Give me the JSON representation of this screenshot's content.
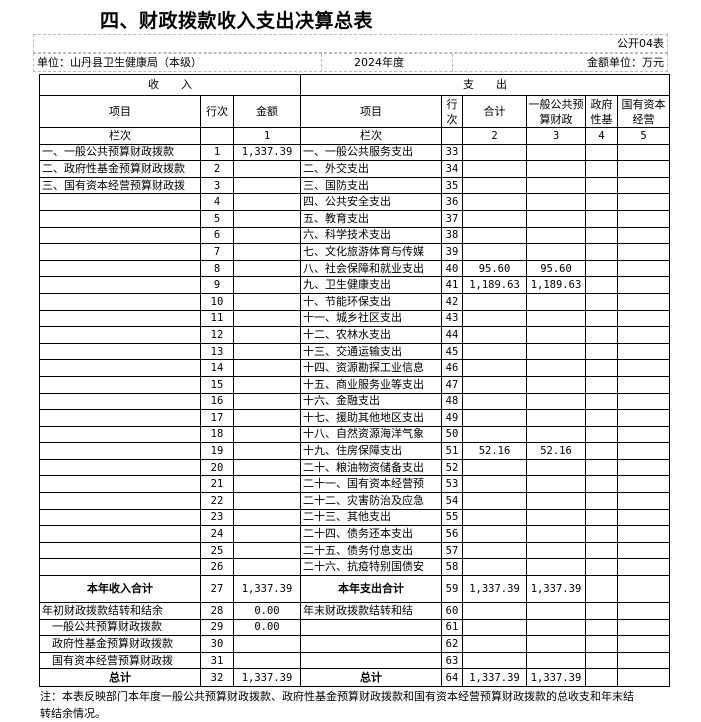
{
  "title": "四、财政拨款收入支出决算总表",
  "form_code": "公开04表",
  "unit": "单位：山丹县卫生健康局（本级）",
  "year": "2024年度",
  "currency": "金额单位：万元",
  "header": {
    "income": "收　　入",
    "expense": "支　　出",
    "item": "项目",
    "row_no": "行次",
    "amount": "金额",
    "exp_item": "项目",
    "exp_row_no": "行次",
    "total": "合计",
    "general": "一般公共预算财政",
    "gov_fund": "政府性基",
    "state_capital": "国有资本经营",
    "col_label": "栏次",
    "col1": "1",
    "col_label2": "栏次",
    "col2": "2",
    "col3": "3",
    "col4": "4",
    "col5": "5"
  },
  "rows": [
    {
      "in_item": "一、一般公共预算财政拨款",
      "in_no": "1",
      "in_amt": "1,337.39",
      "ex_item": "一、一般公共服务支出",
      "ex_no": "33",
      "total": "",
      "general": ""
    },
    {
      "in_item": "二、政府性基金预算财政拨款",
      "in_no": "2",
      "in_amt": "",
      "ex_item": "二、外交支出",
      "ex_no": "34",
      "total": "",
      "general": ""
    },
    {
      "in_item": "三、国有资本经营预算财政拨",
      "in_no": "3",
      "in_amt": "",
      "ex_item": "三、国防支出",
      "ex_no": "35",
      "total": "",
      "general": ""
    },
    {
      "in_item": "",
      "in_no": "4",
      "in_amt": "",
      "ex_item": "四、公共安全支出",
      "ex_no": "36",
      "total": "",
      "general": ""
    },
    {
      "in_item": "",
      "in_no": "5",
      "in_amt": "",
      "ex_item": "五、教育支出",
      "ex_no": "37",
      "total": "",
      "general": ""
    },
    {
      "in_item": "",
      "in_no": "6",
      "in_amt": "",
      "ex_item": "六、科学技术支出",
      "ex_no": "38",
      "total": "",
      "general": ""
    },
    {
      "in_item": "",
      "in_no": "7",
      "in_amt": "",
      "ex_item": "七、文化旅游体育与传媒",
      "ex_no": "39",
      "total": "",
      "general": ""
    },
    {
      "in_item": "",
      "in_no": "8",
      "in_amt": "",
      "ex_item": "八、社会保障和就业支出",
      "ex_no": "40",
      "total": "95.60",
      "general": "95.60"
    },
    {
      "in_item": "",
      "in_no": "9",
      "in_amt": "",
      "ex_item": "九、卫生健康支出",
      "ex_no": "41",
      "total": "1,189.63",
      "general": "1,189.63"
    },
    {
      "in_item": "",
      "in_no": "10",
      "in_amt": "",
      "ex_item": "十、节能环保支出",
      "ex_no": "42",
      "total": "",
      "general": ""
    },
    {
      "in_item": "",
      "in_no": "11",
      "in_amt": "",
      "ex_item": "十一、城乡社区支出",
      "ex_no": "43",
      "total": "",
      "general": ""
    },
    {
      "in_item": "",
      "in_no": "12",
      "in_amt": "",
      "ex_item": "十二、农林水支出",
      "ex_no": "44",
      "total": "",
      "general": ""
    },
    {
      "in_item": "",
      "in_no": "13",
      "in_amt": "",
      "ex_item": "十三、交通运输支出",
      "ex_no": "45",
      "total": "",
      "general": ""
    },
    {
      "in_item": "",
      "in_no": "14",
      "in_amt": "",
      "ex_item": "十四、资源勘探工业信息",
      "ex_no": "46",
      "total": "",
      "general": ""
    },
    {
      "in_item": "",
      "in_no": "15",
      "in_amt": "",
      "ex_item": "十五、商业服务业等支出",
      "ex_no": "47",
      "total": "",
      "general": ""
    },
    {
      "in_item": "",
      "in_no": "16",
      "in_amt": "",
      "ex_item": "十六、金融支出",
      "ex_no": "48",
      "total": "",
      "general": ""
    },
    {
      "in_item": "",
      "in_no": "17",
      "in_amt": "",
      "ex_item": "十七、援助其他地区支出",
      "ex_no": "49",
      "total": "",
      "general": ""
    },
    {
      "in_item": "",
      "in_no": "18",
      "in_amt": "",
      "ex_item": "十八、自然资源海洋气象",
      "ex_no": "50",
      "total": "",
      "general": ""
    },
    {
      "in_item": "",
      "in_no": "19",
      "in_amt": "",
      "ex_item": "十九、住房保障支出",
      "ex_no": "51",
      "total": "52.16",
      "general": "52.16"
    },
    {
      "in_item": "",
      "in_no": "20",
      "in_amt": "",
      "ex_item": "二十、粮油物资储备支出",
      "ex_no": "52",
      "total": "",
      "general": ""
    },
    {
      "in_item": "",
      "in_no": "21",
      "in_amt": "",
      "ex_item": "二十一、国有资本经营预",
      "ex_no": "53",
      "total": "",
      "general": ""
    },
    {
      "in_item": "",
      "in_no": "22",
      "in_amt": "",
      "ex_item": "二十二、灾害防治及应急",
      "ex_no": "54",
      "total": "",
      "general": ""
    },
    {
      "in_item": "",
      "in_no": "23",
      "in_amt": "",
      "ex_item": "二十三、其他支出",
      "ex_no": "55",
      "total": "",
      "general": ""
    },
    {
      "in_item": "",
      "in_no": "24",
      "in_amt": "",
      "ex_item": "二十四、债务还本支出",
      "ex_no": "56",
      "total": "",
      "general": ""
    },
    {
      "in_item": "",
      "in_no": "25",
      "in_amt": "",
      "ex_item": "二十五、债务付息支出",
      "ex_no": "57",
      "total": "",
      "general": ""
    },
    {
      "in_item": "",
      "in_no": "26",
      "in_amt": "",
      "ex_item": "二十六、抗疫特别国债安",
      "ex_no": "58",
      "total": "",
      "general": ""
    }
  ],
  "year_total": {
    "in_item": "本年收入合计",
    "in_no": "27",
    "in_amt": "1,337.39",
    "ex_item": "本年支出合计",
    "ex_no": "59",
    "total": "1,337.39",
    "general": "1,337.39"
  },
  "carry_rows": [
    {
      "in_item": "年初财政拨款结转和结余",
      "in_no": "28",
      "in_amt": "0.00",
      "ex_item": "年末财政拨款结转和结",
      "ex_no": "60",
      "total": "",
      "general": ""
    },
    {
      "in_item": "一般公共预算财政拨款",
      "in_no": "29",
      "in_amt": "0.00",
      "ex_item": "",
      "ex_no": "61",
      "total": "",
      "general": ""
    },
    {
      "in_item": "政府性基金预算财政拨款",
      "in_no": "30",
      "in_amt": "",
      "ex_item": "",
      "ex_no": "62",
      "total": "",
      "general": ""
    },
    {
      "in_item": "国有资本经营预算财政拨",
      "in_no": "31",
      "in_amt": "",
      "ex_item": "",
      "ex_no": "63",
      "total": "",
      "general": ""
    }
  ],
  "grand_total": {
    "in_item": "总计",
    "in_no": "32",
    "in_amt": "1,337.39",
    "ex_item": "总计",
    "ex_no": "64",
    "total": "1,337.39",
    "general": "1,337.39"
  },
  "note": "注：本表反映部门本年度一般公共预算财政拨款、政府性基金预算财政拨款和国有资本经营预算财政拨款的总收支和年末结转结余情况。"
}
